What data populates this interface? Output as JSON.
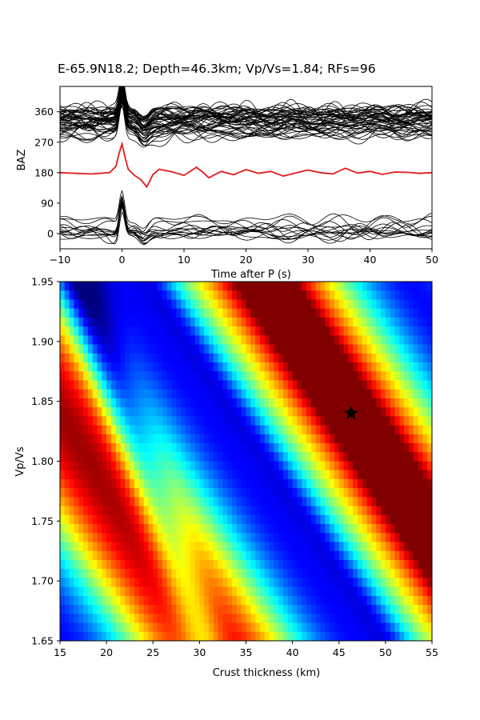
{
  "figure": {
    "title": "E-65.9N18.2; Depth=46.3km; Vp/Vs=1.84; RFs=96"
  },
  "chart_data": [
    {
      "type": "line",
      "xlabel": "Time after P (s)",
      "ylabel": "BAZ",
      "xlim": [
        -10,
        50
      ],
      "ylim": [
        -45,
        435
      ],
      "x_ticks": [
        -10,
        0,
        10,
        20,
        30,
        40,
        50
      ],
      "x_tick_labels": [
        "−10",
        "0",
        "10",
        "20",
        "30",
        "40",
        "50"
      ],
      "y_ticks": [
        0,
        90,
        180,
        270,
        360
      ],
      "y_tick_labels": [
        "0",
        "90",
        "180",
        "270",
        "360"
      ],
      "grid": false,
      "trace_groups": [
        {
          "baseline_min": 290,
          "baseline_max": 365,
          "count": 48,
          "color": "#000000"
        },
        {
          "baseline_min": -5,
          "baseline_max": 45,
          "count": 14,
          "color": "#000000"
        }
      ],
      "stacked_trace": {
        "baseline": 180,
        "color": "#e41a1c",
        "x": [
          -10,
          -5,
          -2,
          -1,
          -0.5,
          0,
          0.5,
          1,
          2,
          3,
          4,
          5,
          6,
          8,
          10,
          12,
          13,
          14,
          16,
          18,
          20,
          22,
          24,
          26,
          28,
          30,
          32,
          34,
          36,
          38,
          40,
          42,
          44,
          46,
          48,
          50
        ],
        "y": [
          180,
          176,
          180,
          198,
          235,
          265,
          225,
          190,
          172,
          160,
          138,
          175,
          190,
          183,
          172,
          196,
          182,
          165,
          184,
          174,
          189,
          178,
          184,
          170,
          179,
          188,
          180,
          176,
          193,
          179,
          184,
          175,
          182,
          181,
          178,
          180
        ]
      }
    },
    {
      "type": "heatmap",
      "xlabel": "Crust thickness (km)",
      "ylabel": "Vp/Vs",
      "xlim": [
        15,
        55
      ],
      "ylim": [
        1.65,
        1.95
      ],
      "x_ticks": [
        15,
        20,
        25,
        30,
        35,
        40,
        45,
        50,
        55
      ],
      "x_tick_labels": [
        "15",
        "20",
        "25",
        "30",
        "35",
        "40",
        "45",
        "50",
        "55"
      ],
      "y_ticks": [
        1.65,
        1.7,
        1.75,
        1.8,
        1.85,
        1.9,
        1.95
      ],
      "y_tick_labels": [
        "1.65",
        "1.70",
        "1.75",
        "1.80",
        "1.85",
        "1.90",
        "1.95"
      ],
      "colormap": "jet",
      "grid": false,
      "best_fit": {
        "x": 46.3,
        "y": 1.84,
        "marker": "star",
        "color": "#000000"
      }
    }
  ]
}
